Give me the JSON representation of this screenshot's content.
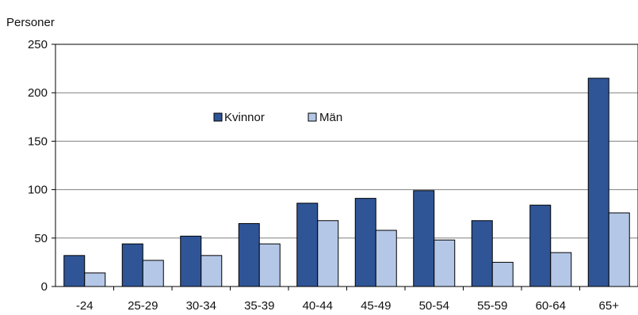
{
  "chart_data": {
    "type": "bar",
    "title": "",
    "xlabel": "",
    "ylabel": "Personer",
    "ylim": [
      0,
      250
    ],
    "yticks": [
      0,
      50,
      100,
      150,
      200,
      250
    ],
    "grid": true,
    "legend_position": "upper-middle",
    "categories": [
      "-24",
      "25-29",
      "30-34",
      "35-39",
      "40-44",
      "45-49",
      "50-54",
      "55-59",
      "60-64",
      "65+"
    ],
    "series": [
      {
        "name": "Kvinnor",
        "color": "#2F5597",
        "values": [
          32,
          44,
          52,
          65,
          86,
          91,
          99,
          68,
          84,
          215
        ]
      },
      {
        "name": "Män",
        "color": "#B4C7E7",
        "values": [
          14,
          27,
          32,
          44,
          68,
          58,
          48,
          25,
          35,
          76
        ]
      }
    ]
  }
}
